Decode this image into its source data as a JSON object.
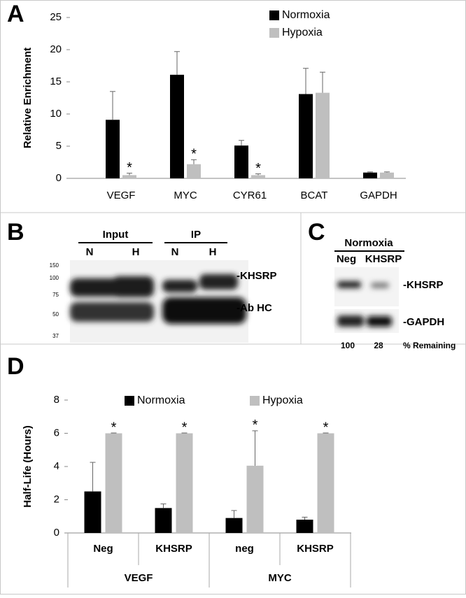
{
  "chart_data": [
    {
      "type": "bar",
      "panel": "A",
      "ylabel": "Relative Enrichment",
      "categories": [
        "VEGF",
        "MYC",
        "CYR61",
        "BCAT",
        "GAPDH"
      ],
      "series": [
        {
          "name": "Normoxia",
          "color": "#000000",
          "values": [
            9.1,
            16.1,
            5.1,
            13.1,
            0.9
          ],
          "errors": [
            4.4,
            3.6,
            0.8,
            4.0,
            0.1
          ]
        },
        {
          "name": "Hypoxia",
          "color": "#bfbfbf",
          "values": [
            0.5,
            2.2,
            0.5,
            13.3,
            0.9
          ],
          "errors": [
            0.3,
            0.7,
            0.2,
            3.2,
            0.1
          ],
          "markers": [
            "*",
            "*",
            "*",
            null,
            null
          ]
        }
      ],
      "ylim": [
        0,
        25
      ],
      "yticks": [
        0,
        5,
        10,
        15,
        20,
        25
      ],
      "legend": "top-right"
    },
    {
      "type": "bar",
      "panel": "D",
      "ylabel": "Half-Life (Hours)",
      "categories": [
        "Neg",
        "KHSRP",
        "neg",
        "KHSRP"
      ],
      "group_labels": [
        "VEGF",
        "MYC"
      ],
      "series": [
        {
          "name": "Normoxia",
          "color": "#000000",
          "values": [
            2.5,
            1.5,
            0.9,
            0.8
          ],
          "errors": [
            1.75,
            0.25,
            0.45,
            0.15
          ]
        },
        {
          "name": "Hypoxia",
          "color": "#bfbfbf",
          "values": [
            6,
            6,
            4.05,
            6
          ],
          "errors": [
            0.02,
            0.02,
            2.1,
            0.02
          ],
          "markers": [
            "*",
            "*",
            "*",
            "*"
          ]
        }
      ],
      "ylim": [
        0,
        8
      ],
      "yticks": [
        0,
        2,
        4,
        6,
        8
      ],
      "legend": "top"
    }
  ],
  "blot_b": {
    "panel": "B",
    "groups": [
      "Input",
      "IP"
    ],
    "lanes": [
      "N",
      "H",
      "N",
      "H"
    ],
    "ladder": [
      150,
      100,
      75,
      50,
      37
    ],
    "bands": [
      "-KHSRP",
      "-Ab HC"
    ]
  },
  "blot_c": {
    "panel": "C",
    "condition": "Normoxia",
    "lanes": [
      "Neg",
      "KHSRP"
    ],
    "bands": [
      "-KHSRP",
      "-GAPDH"
    ],
    "remaining": [
      100,
      28
    ],
    "remaining_label": "% Remaining"
  }
}
